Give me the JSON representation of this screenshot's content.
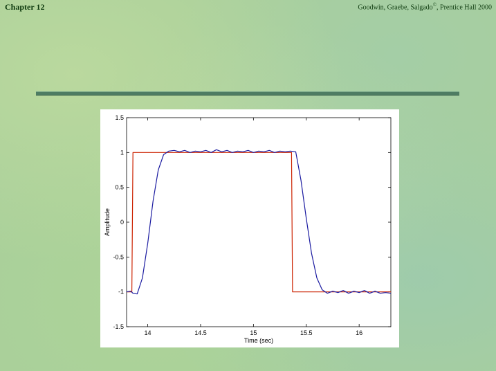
{
  "header": {
    "chapter": "Chapter 12",
    "credit": "Goodwin, Graebe, Salgado",
    "credit_suffix": ", Prentice Hall 2000",
    "credit_mark": "©"
  },
  "chart_data": {
    "type": "line",
    "xlabel": "Time  (sec)",
    "ylabel": "Amplitude",
    "xlim": [
      13.8,
      16.3
    ],
    "ylim": [
      -1.5,
      1.5
    ],
    "xticks": [
      14,
      14.5,
      15,
      15.5,
      16
    ],
    "yticks": [
      -1.5,
      -1,
      -0.5,
      0,
      0.5,
      1,
      1.5
    ],
    "xtick_labels": [
      "14",
      "14.5",
      "15",
      "15.5",
      "16"
    ],
    "ytick_labels": [
      "-1.5",
      "-1",
      "-0.5",
      "0",
      "0.5",
      "1",
      "1.5"
    ],
    "grid": false,
    "series": [
      {
        "color": "#cc2200",
        "x": [
          13.8,
          13.85,
          13.86,
          15.36,
          15.37,
          16.3
        ],
        "y": [
          -1,
          -1,
          1,
          1,
          -1,
          -1
        ]
      },
      {
        "color": "#1a1aa0",
        "x": [
          13.8,
          13.84,
          13.86,
          13.9,
          13.95,
          14.0,
          14.05,
          14.1,
          14.15,
          14.2,
          14.25,
          14.3,
          14.35,
          14.4,
          14.45,
          14.5,
          14.55,
          14.6,
          14.65,
          14.7,
          14.75,
          14.8,
          14.85,
          14.9,
          14.95,
          15.0,
          15.05,
          15.1,
          15.15,
          15.2,
          15.25,
          15.3,
          15.35,
          15.4,
          15.45,
          15.5,
          15.55,
          15.6,
          15.65,
          15.7,
          15.75,
          15.8,
          15.85,
          15.9,
          15.95,
          16.0,
          16.05,
          16.1,
          16.15,
          16.2,
          16.25,
          16.3
        ],
        "y": [
          -1.0,
          -0.99,
          -1.02,
          -1.03,
          -0.8,
          -0.3,
          0.3,
          0.75,
          0.97,
          1.02,
          1.03,
          1.01,
          1.03,
          1.0,
          1.02,
          1.01,
          1.03,
          1.0,
          1.04,
          1.01,
          1.03,
          1.0,
          1.02,
          1.01,
          1.03,
          1.0,
          1.02,
          1.01,
          1.03,
          1.0,
          1.02,
          1.01,
          1.02,
          1.01,
          0.6,
          0.05,
          -0.45,
          -0.8,
          -0.97,
          -1.02,
          -0.99,
          -1.01,
          -0.98,
          -1.02,
          -0.99,
          -1.01,
          -0.98,
          -1.02,
          -0.99,
          -1.02,
          -1.01,
          -1.02
        ]
      }
    ]
  }
}
